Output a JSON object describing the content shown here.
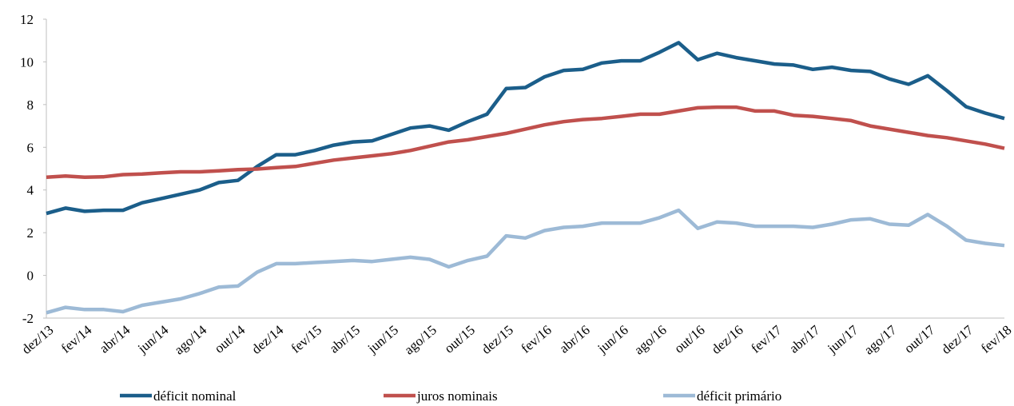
{
  "chart_data": {
    "type": "line",
    "categories": [
      "dez/13",
      null,
      "fev/14",
      null,
      "abr/14",
      null,
      "jun/14",
      null,
      "ago/14",
      null,
      "out/14",
      null,
      "dez/14",
      null,
      "fev/15",
      null,
      "abr/15",
      null,
      "jun/15",
      null,
      "ago/15",
      null,
      "out/15",
      null,
      "dez/15",
      null,
      "fev/16",
      null,
      "abr/16",
      null,
      "jun/16",
      null,
      "ago/16",
      null,
      "out/16",
      null,
      "dez/16",
      null,
      "fev/17",
      null,
      "abr/17",
      null,
      "jun/17",
      null,
      "ago/17",
      null,
      "out/17",
      null,
      "dez/17",
      null,
      "fev/18"
    ],
    "series": [
      {
        "name": "déficit nominal",
        "color": "#1b5e8a",
        "values": [
          2.9,
          3.15,
          3.0,
          3.05,
          3.05,
          3.4,
          3.6,
          3.8,
          4.0,
          4.35,
          4.45,
          5.1,
          5.65,
          5.65,
          5.85,
          6.1,
          6.25,
          6.3,
          6.6,
          6.9,
          7.0,
          6.8,
          7.2,
          7.55,
          8.75,
          8.8,
          9.3,
          9.6,
          9.65,
          9.95,
          10.05,
          10.05,
          10.45,
          10.9,
          10.1,
          10.4,
          10.2,
          10.05,
          9.9,
          9.85,
          9.65,
          9.75,
          9.6,
          9.55,
          9.2,
          8.95,
          9.35,
          8.65,
          7.9,
          7.6,
          7.35
        ]
      },
      {
        "name": "juros nominais",
        "color": "#c0504d",
        "values": [
          4.6,
          4.65,
          4.6,
          4.62,
          4.72,
          4.75,
          4.8,
          4.85,
          4.85,
          4.9,
          4.95,
          4.98,
          5.05,
          5.1,
          5.25,
          5.4,
          5.5,
          5.6,
          5.7,
          5.85,
          6.05,
          6.25,
          6.35,
          6.5,
          6.65,
          6.85,
          7.05,
          7.2,
          7.3,
          7.35,
          7.45,
          7.55,
          7.55,
          7.7,
          7.85,
          7.88,
          7.88,
          7.7,
          7.7,
          7.5,
          7.45,
          7.35,
          7.25,
          7.0,
          6.85,
          6.7,
          6.55,
          6.45,
          6.3,
          6.15,
          5.95
        ]
      },
      {
        "name": "déficit primário",
        "color": "#9dbad6",
        "values": [
          -1.75,
          -1.5,
          -1.6,
          -1.6,
          -1.7,
          -1.4,
          -1.25,
          -1.1,
          -0.85,
          -0.55,
          -0.5,
          0.15,
          0.55,
          0.55,
          0.6,
          0.65,
          0.7,
          0.65,
          0.75,
          0.85,
          0.75,
          0.4,
          0.7,
          0.9,
          1.85,
          1.75,
          2.1,
          2.25,
          2.3,
          2.45,
          2.45,
          2.45,
          2.7,
          3.05,
          2.2,
          2.5,
          2.45,
          2.3,
          2.3,
          2.3,
          2.25,
          2.4,
          2.6,
          2.65,
          2.4,
          2.35,
          2.85,
          2.3,
          1.65,
          1.5,
          1.4
        ]
      }
    ],
    "ylim": [
      -2,
      12
    ],
    "yticks": [
      -2,
      0,
      2,
      4,
      6,
      8,
      10,
      12
    ],
    "grid": false
  }
}
